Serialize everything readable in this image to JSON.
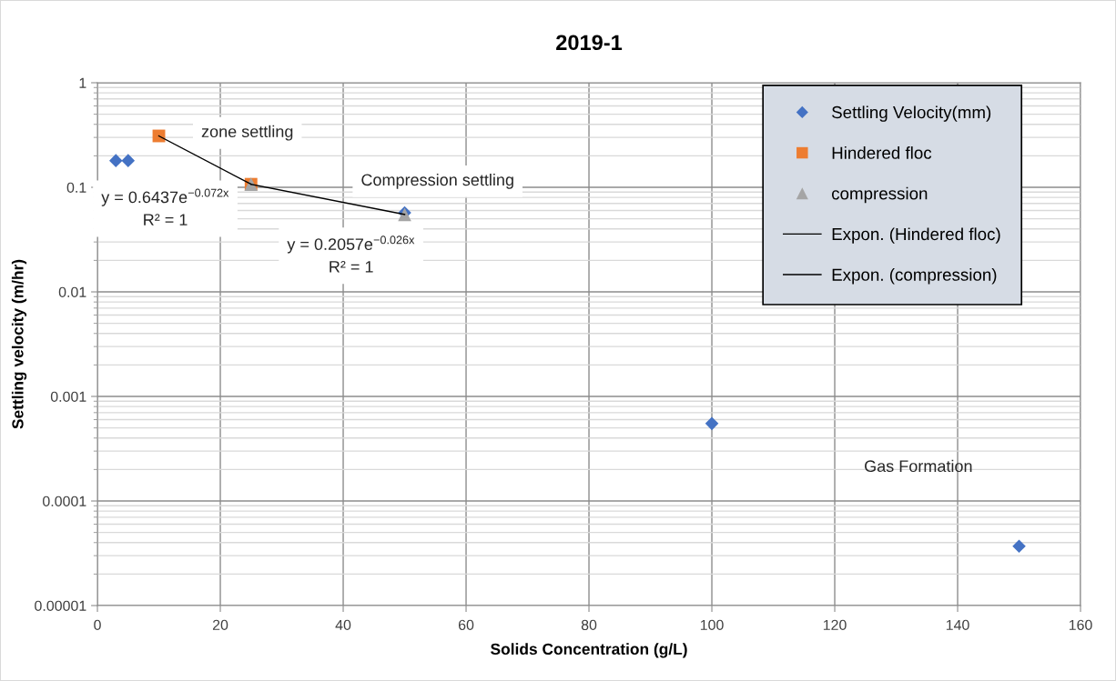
{
  "chart_data": {
    "type": "scatter",
    "title": "2019-1",
    "xlabel": "Solids Concentration (g/L)",
    "ylabel": "Settling velocity (m/hr)",
    "xlim": [
      0,
      160
    ],
    "xticks": [
      0,
      20,
      40,
      60,
      80,
      100,
      120,
      140,
      160
    ],
    "ylim": [
      1e-05,
      1
    ],
    "yticks": [
      {
        "value": 1e-05,
        "label": "0.00001"
      },
      0.0001,
      0.001,
      0.01,
      0.1,
      1
    ],
    "log": "y",
    "grid": true,
    "legend": "top right",
    "series": [
      {
        "name": "Settling Velocity(mm)",
        "marker": "diamond",
        "color": "#4472c4",
        "x": [
          3,
          5,
          50,
          100,
          150
        ],
        "values": [
          0.18,
          0.18,
          0.057,
          0.00055,
          3.7e-05
        ]
      },
      {
        "name": "Hindered floc",
        "marker": "square",
        "color": "#ed7d31",
        "x": [
          10,
          25
        ],
        "values": [
          0.31,
          0.107
        ]
      },
      {
        "name": "compression",
        "marker": "triangle",
        "color": "#a5a5a5",
        "x": [
          25,
          50
        ],
        "values": [
          0.107,
          0.055
        ]
      },
      {
        "name": "Expon. (Hindered floc)",
        "type": "line",
        "marker": "none",
        "line_style": "solid",
        "color": "#000000",
        "x": [
          10,
          25
        ],
        "values": [
          0.31,
          0.107
        ]
      },
      {
        "name": "Expon. (compression)",
        "type": "line",
        "marker": "none",
        "line_style": "solid",
        "color": "#000000",
        "x": [
          25,
          50
        ],
        "values": [
          0.107,
          0.055
        ]
      }
    ],
    "annotations": [
      "zone settling",
      "Compression settling",
      "Gas Formation",
      "y = 0.6437e$^{−0.072x}$\nR² = 1",
      "y = 0.2057e$^{−0.026x}$\nR² = 1"
    ]
  }
}
